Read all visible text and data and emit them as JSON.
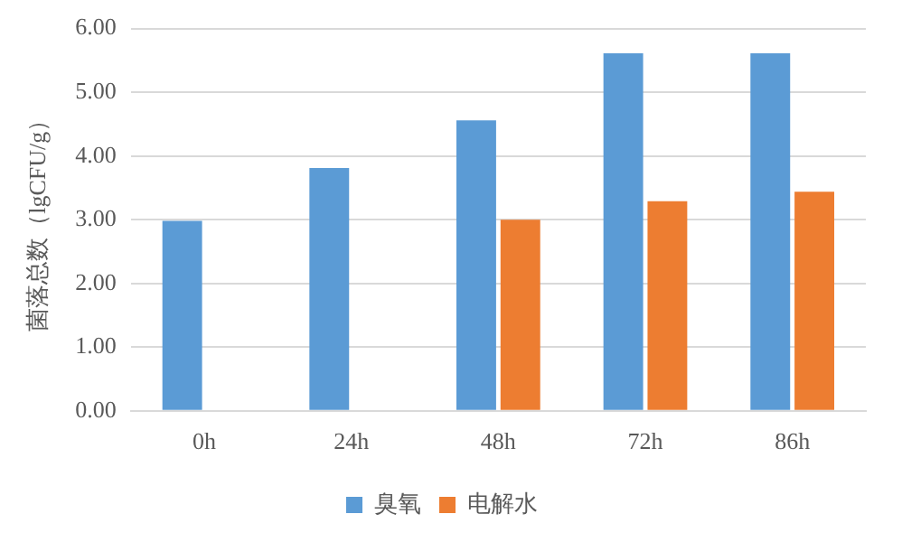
{
  "chart_data": {
    "type": "bar",
    "ylabel": "菌落总数（lgCFU/g）",
    "categories": [
      "0h",
      "24h",
      "48h",
      "72h",
      "86h"
    ],
    "series": [
      {
        "name": "臭氧",
        "color": "#5b9bd5",
        "values": [
          2.98,
          3.81,
          4.56,
          5.61,
          5.61
        ]
      },
      {
        "name": "电解水",
        "color": "#ed7d31",
        "values": [
          null,
          null,
          3.0,
          3.29,
          3.44
        ]
      }
    ],
    "ylim": [
      0,
      6
    ],
    "yticks": [
      {
        "value": 0,
        "label": "0.00"
      },
      {
        "value": 1,
        "label": "1.00"
      },
      {
        "value": 2,
        "label": "2.00"
      },
      {
        "value": 3,
        "label": "3.00"
      },
      {
        "value": 4,
        "label": "4.00"
      },
      {
        "value": 5,
        "label": "5.00"
      },
      {
        "value": 6,
        "label": "6.00"
      }
    ],
    "grid": "y",
    "legend": "bottom"
  }
}
